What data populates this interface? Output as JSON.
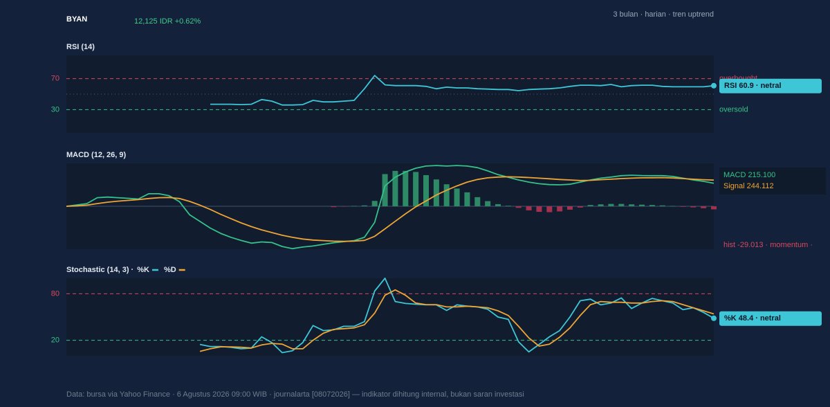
{
  "header": {
    "ticker": "BYAN",
    "quote": "12,125 IDR +0.62%",
    "meta": "3 bulan · harian · tren uptrend"
  },
  "footer": "Data: bursa via Yahoo Finance · 6 Agustus 2026 09:00 WIB · journalarta [08072026] — indikator dihitung internal, bukan saran investasi",
  "chart_data": [
    {
      "type": "line",
      "title": "RSI (14)",
      "ylim": [
        0,
        100
      ],
      "yticks": [
        30,
        70
      ],
      "reference_lines": [
        {
          "value": 70,
          "label": "overbought",
          "color": "#d9475f",
          "dash": "dashed"
        },
        {
          "value": 50,
          "color": "#4a5a70",
          "dash": "dotted"
        },
        {
          "value": 30,
          "label": "oversold",
          "color": "#35c28a",
          "dash": "dashed"
        }
      ],
      "series": [
        {
          "name": "RSI",
          "color": "#3ec6d6",
          "values": [
            null,
            null,
            null,
            null,
            null,
            null,
            null,
            null,
            null,
            null,
            null,
            null,
            null,
            null,
            37,
            37,
            37,
            36.5,
            37,
            43,
            41,
            36,
            36,
            36.5,
            42,
            40,
            40,
            41,
            42,
            57,
            74,
            62,
            61,
            61,
            61,
            60,
            57,
            59,
            58,
            58,
            57,
            56.5,
            56,
            56,
            54.5,
            56,
            56.5,
            57,
            58,
            60,
            61.5,
            61.5,
            61,
            62.5,
            59.5,
            61,
            61.5,
            61.5,
            60,
            59.5,
            59.5,
            59.5,
            59.5,
            60.9
          ]
        }
      ],
      "readout": {
        "text": "RSI 60.9 · netral",
        "color": "#3ec6d6"
      }
    },
    {
      "type": "line",
      "title": "MACD (12, 26, 9)",
      "ylim": [
        -400,
        400
      ],
      "zero_line": true,
      "series": [
        {
          "name": "hist",
          "type": "bar",
          "color": "#2e8a66",
          "negative_color": "#a3304f",
          "values": [
            null,
            null,
            null,
            null,
            null,
            null,
            null,
            null,
            null,
            null,
            null,
            null,
            null,
            null,
            null,
            null,
            null,
            null,
            null,
            null,
            null,
            null,
            null,
            null,
            null,
            null,
            -8,
            -3,
            3,
            8,
            50,
            300,
            330,
            330,
            320,
            290,
            250,
            205,
            165,
            130,
            85,
            48,
            20,
            5,
            -15,
            -38,
            -52,
            -55,
            -48,
            -32,
            -12,
            12,
            18,
            22,
            22,
            18,
            15,
            12,
            8,
            2,
            -5,
            -10,
            -18,
            -29.013
          ]
        },
        {
          "name": "MACD",
          "color": "#35c28a",
          "values": [
            0,
            12,
            25,
            80,
            86,
            80,
            74,
            68,
            117,
            117,
            98,
            43,
            -80,
            -141,
            -203,
            -252,
            -289,
            -319,
            -344,
            -332,
            -338,
            -375,
            -395,
            -380,
            -370,
            -355,
            -340,
            -330,
            -320,
            -290,
            -150,
            190,
            270,
            320,
            355,
            375,
            380,
            375,
            380,
            375,
            360,
            330,
            295,
            270,
            245,
            225,
            210,
            202,
            200,
            205,
            225,
            245,
            262,
            272,
            285,
            290,
            286,
            285,
            285,
            278,
            262,
            245,
            232,
            215.1
          ]
        },
        {
          "name": "Signal",
          "color": "#eea535",
          "values": [
            0,
            3,
            10,
            25,
            38,
            48,
            55,
            62,
            72,
            80,
            82,
            72,
            45,
            10,
            -30,
            -75,
            -115,
            -155,
            -190,
            -220,
            -245,
            -270,
            -290,
            -305,
            -315,
            -320,
            -325,
            -327,
            -325,
            -318,
            -280,
            -210,
            -140,
            -70,
            -5,
            50,
            105,
            150,
            190,
            225,
            250,
            265,
            272,
            275,
            272,
            268,
            262,
            256,
            250,
            245,
            240,
            242,
            248,
            252,
            258,
            262,
            265,
            266,
            267,
            264,
            258,
            252,
            248,
            244.112
          ]
        }
      ],
      "readouts": [
        {
          "text": "MACD 215.100",
          "color": "#35c28a"
        },
        {
          "text": "Signal 244.112",
          "color": "#eea535"
        },
        {
          "text": "hist -29.013 · momentum ·",
          "color": "#d9475f"
        }
      ]
    },
    {
      "type": "line",
      "title": "Stochastic (14, 3) ·",
      "legend": true,
      "ylim": [
        0,
        100
      ],
      "yticks": [
        20,
        80
      ],
      "reference_lines": [
        {
          "value": 80,
          "color": "#d9475f",
          "dash": "dashed"
        },
        {
          "value": 20,
          "color": "#35c28a",
          "dash": "dashed"
        }
      ],
      "series": [
        {
          "name": "%K",
          "color": "#3ec6d6",
          "values": [
            null,
            null,
            null,
            null,
            null,
            null,
            null,
            null,
            null,
            null,
            null,
            null,
            null,
            14.6,
            12,
            12,
            11,
            9,
            10,
            24.5,
            17,
            4,
            6.5,
            17,
            39,
            32.5,
            33.5,
            38,
            38,
            44,
            83.5,
            100,
            70,
            67.5,
            66.5,
            65.7,
            65.7,
            58.5,
            65.7,
            64,
            63,
            60,
            50,
            47,
            18,
            5,
            14.6,
            24.5,
            32.5,
            50,
            71,
            73,
            65.7,
            68,
            74.6,
            61,
            68,
            74,
            71,
            68,
            59.5,
            62,
            56,
            48.4
          ]
        },
        {
          "name": "%D",
          "color": "#eea535",
          "values": [
            null,
            null,
            null,
            null,
            null,
            null,
            null,
            null,
            null,
            null,
            null,
            null,
            null,
            5.7,
            9,
            11.5,
            11.5,
            11,
            10,
            14,
            16,
            15,
            9,
            9,
            20,
            29,
            34,
            35,
            36,
            40,
            55,
            78,
            85,
            78,
            68,
            66,
            66,
            63,
            63,
            64,
            63,
            62,
            58,
            52,
            38,
            23,
            12.5,
            15,
            24,
            36,
            52,
            66,
            70,
            69,
            69,
            68,
            68,
            70,
            71,
            70,
            66,
            62,
            58,
            54
          ]
        }
      ],
      "readout": {
        "text": "%K 48.4 · netral",
        "color": "#3ec6d6"
      }
    }
  ]
}
